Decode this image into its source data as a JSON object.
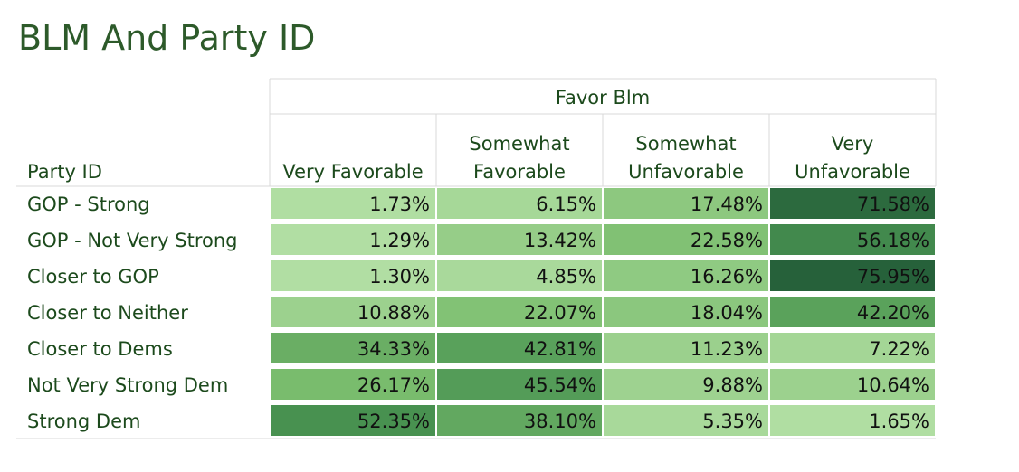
{
  "title": "BLM And Party ID",
  "chart_data": {
    "type": "heatmap",
    "column_group_label": "Favor Blm",
    "row_header_label": "Party ID",
    "columns": [
      [
        "Very Favorable"
      ],
      [
        "Somewhat",
        "Favorable"
      ],
      [
        "Somewhat",
        "Unfavorable"
      ],
      [
        "Very",
        "Unfavorable"
      ]
    ],
    "rows": [
      "GOP - Strong",
      "GOP - Not Very Strong",
      "Closer to GOP",
      "Closer to Neither",
      "Closer to Dems",
      "Not Very Strong Dem",
      "Strong Dem"
    ],
    "values": [
      [
        1.73,
        6.15,
        17.48,
        71.58
      ],
      [
        1.29,
        13.42,
        22.58,
        56.18
      ],
      [
        1.3,
        4.85,
        16.26,
        75.95
      ],
      [
        10.88,
        22.07,
        18.04,
        42.2
      ],
      [
        34.33,
        42.81,
        11.23,
        7.22
      ],
      [
        26.17,
        45.54,
        9.88,
        10.64
      ],
      [
        52.35,
        38.1,
        5.35,
        1.65
      ]
    ],
    "value_format": "percent_2dp",
    "color_scale": [
      "#b4e0a6",
      "#7bbd6e",
      "#4a9452",
      "#26613a"
    ],
    "color_range": [
      0,
      76
    ]
  }
}
